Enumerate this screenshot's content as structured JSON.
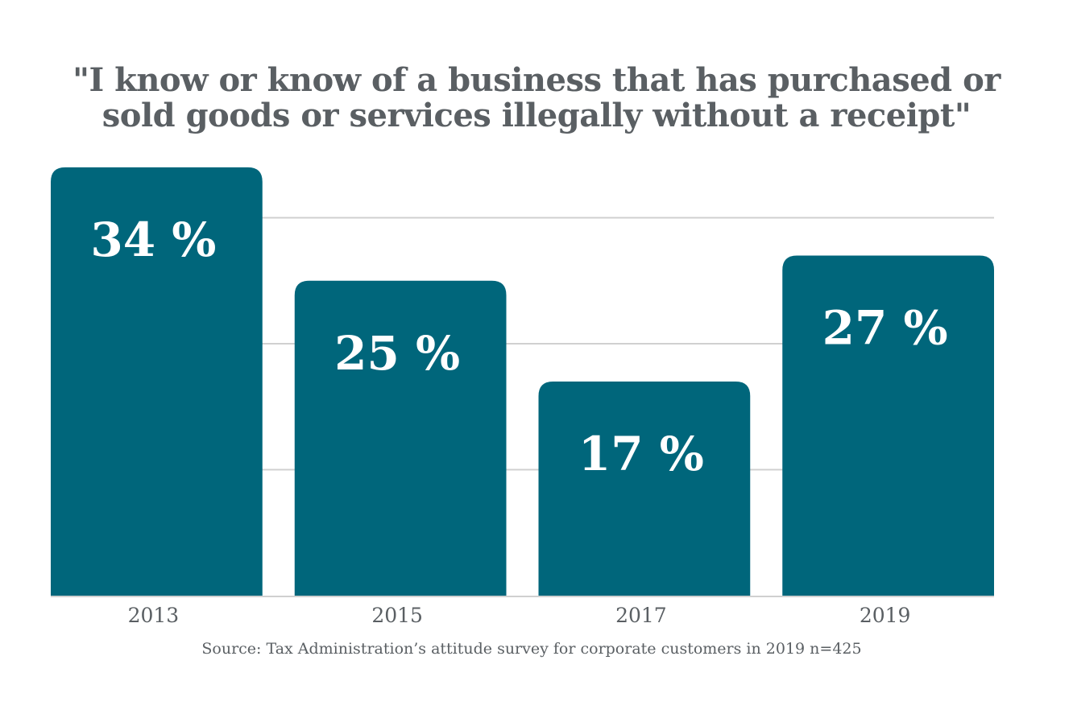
{
  "chart_data": {
    "type": "bar",
    "title": "\"I know or know of a business that has purchased or sold goods or services illegally without a receipt\"",
    "title_lines": [
      "\"I know or know of a business that has purchased or",
      "sold goods or services illegally without a receipt\""
    ],
    "categories": [
      "2013",
      "2015",
      "2017",
      "2019"
    ],
    "values": [
      34,
      25,
      17,
      27
    ],
    "value_labels": [
      "34 %",
      "25 %",
      "17 %",
      "27 %"
    ],
    "unit": "%",
    "xlabel": "",
    "ylabel": "",
    "ylim": [
      0,
      40
    ],
    "gridlines": [
      10,
      20,
      30
    ],
    "grid": true,
    "y_tick_labels_shown": false,
    "legend": "none",
    "source": "Source: Tax Administration’s attitude survey for corporate customers in 2019 n=425",
    "colors": {
      "bar": "#00667b",
      "bar_label": "#ffffff",
      "title": "#5a5f63",
      "axis_text": "#5a5f63",
      "grid": "#d0d0d0"
    }
  }
}
